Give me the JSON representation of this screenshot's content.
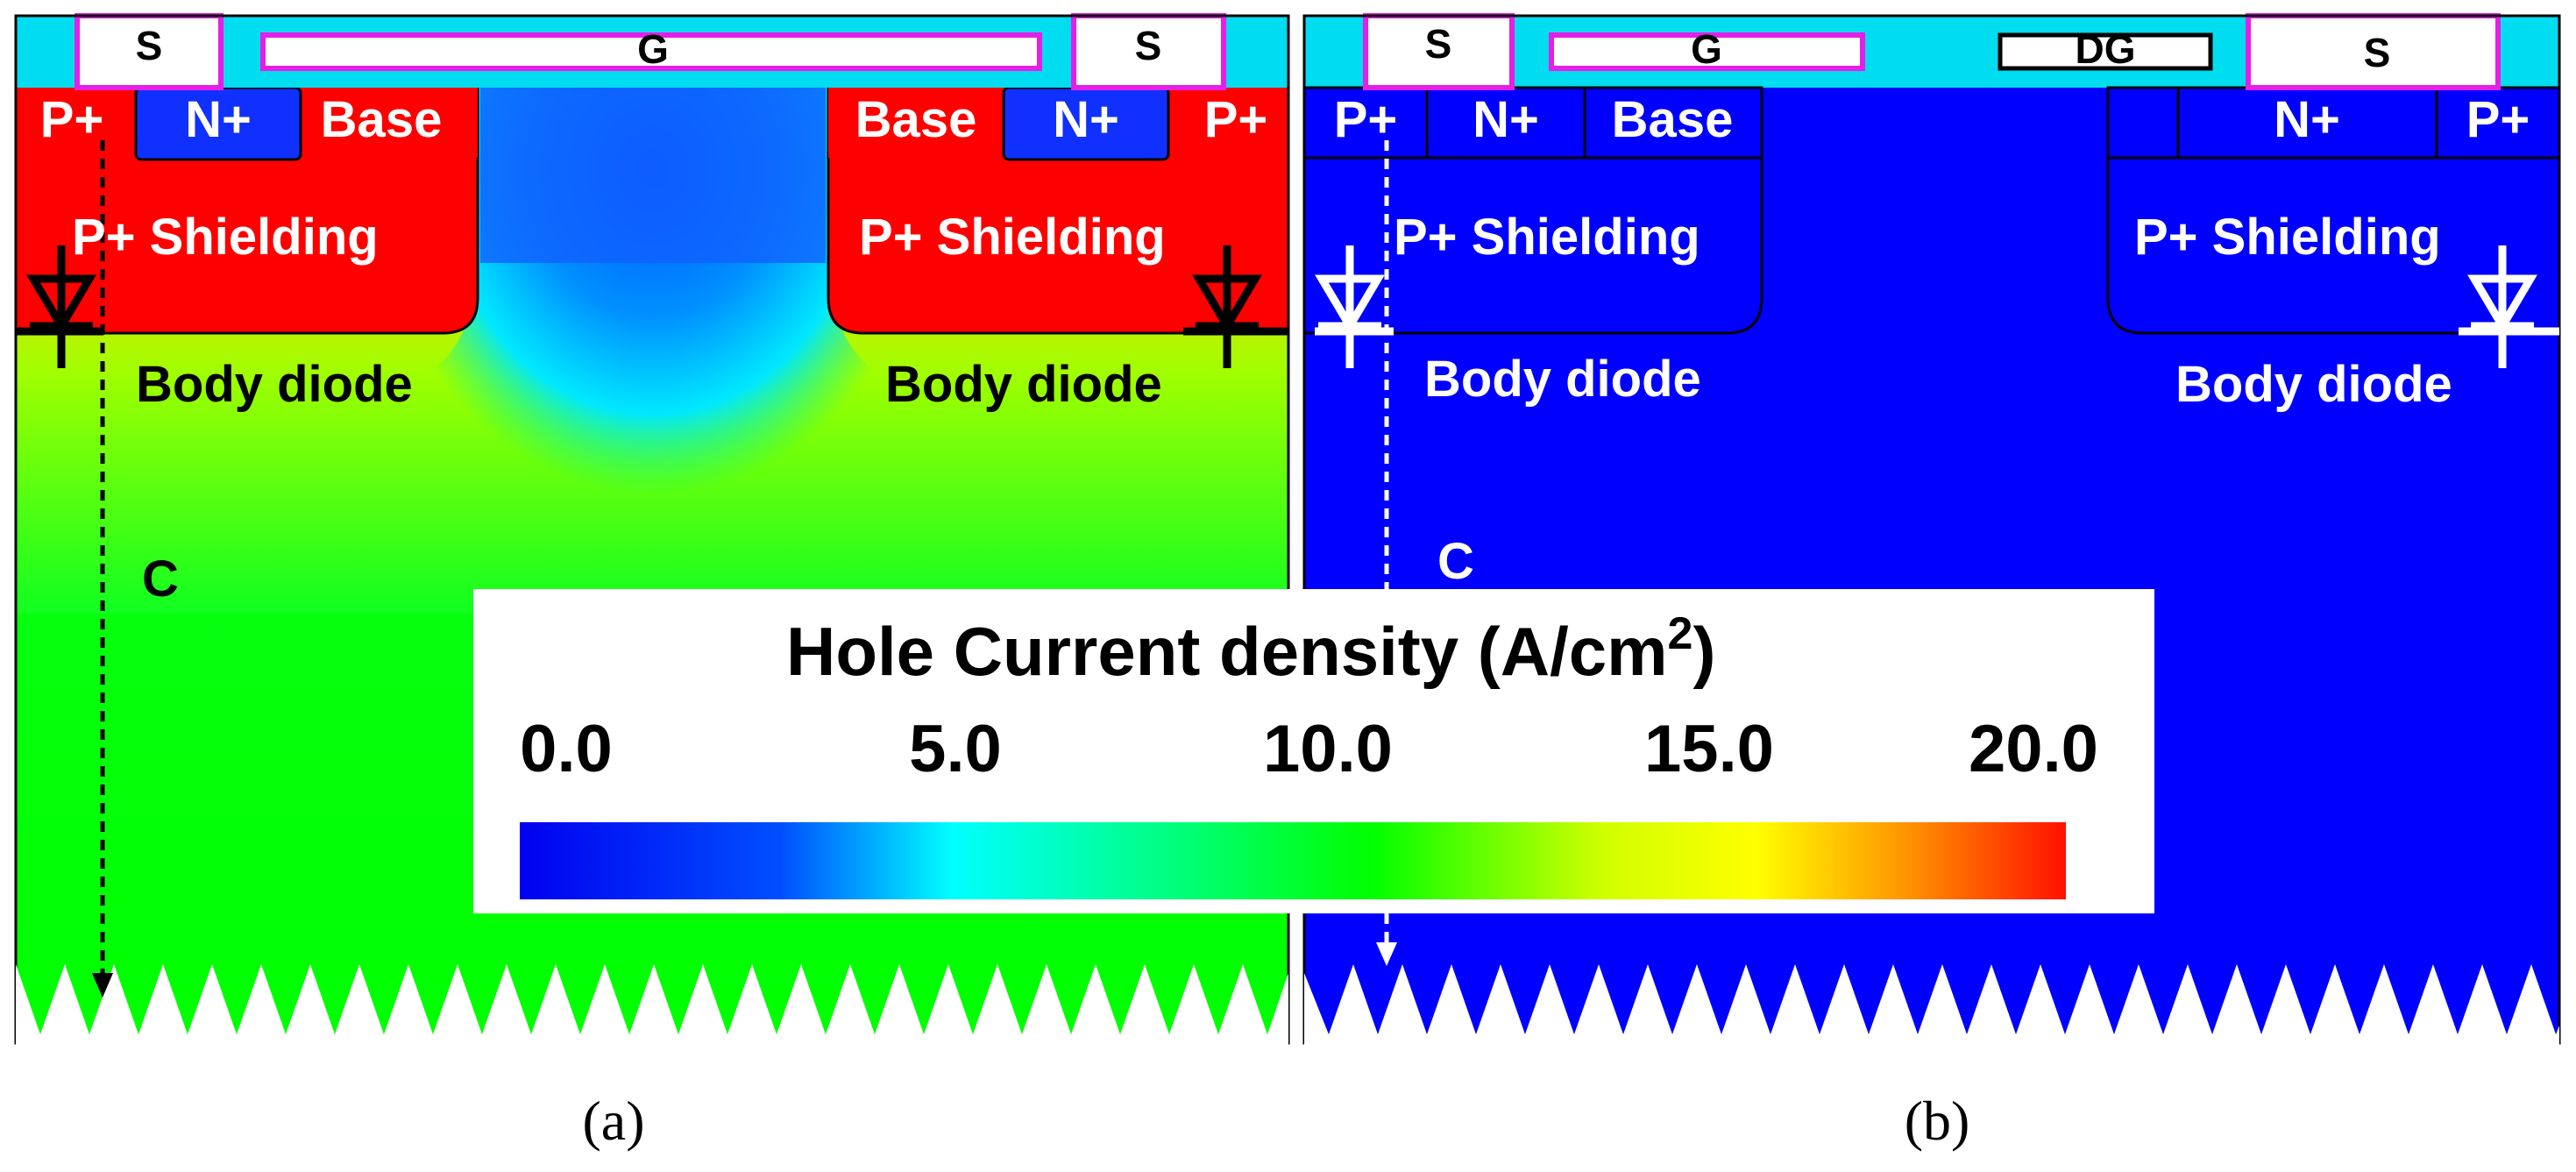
{
  "panel_a": {
    "terminals": {
      "source_left": "S",
      "gate": "G",
      "source_right": "S"
    },
    "regions": {
      "p_plus_left": "P+",
      "n_plus_left": "N+",
      "base_left": "Base",
      "base_right": "Base",
      "n_plus_right": "N+",
      "p_plus_right": "P+",
      "shielding_left": "P+ Shielding",
      "shielding_right": "P+ Shielding",
      "body_diode_left": "Body diode",
      "body_diode_right": "Body diode",
      "channel_label": "C"
    },
    "caption": "(a)"
  },
  "panel_b": {
    "terminals": {
      "source_left": "S",
      "gate": "G",
      "dummy_gate": "DG",
      "source_right": "S"
    },
    "regions": {
      "p_plus_left": "P+",
      "n_plus_left": "N+",
      "base_left": "Base",
      "n_plus_right": "N+",
      "p_plus_right": "P+",
      "shielding_left": "P+ Shielding",
      "shielding_right": "P+ Shielding",
      "body_diode_left": "Body diode",
      "body_diode_right": "Body diode",
      "channel_label": "C"
    },
    "caption": "(b)"
  },
  "colorbar": {
    "title": "Hole Current density (A/cm",
    "title_sup": "2",
    "title_close": ")",
    "ticks": [
      "0.0",
      "5.0",
      "10.0",
      "15.0",
      "20.0"
    ],
    "range": [
      0,
      20
    ],
    "colormap": [
      "#0000ff",
      "#0060ff",
      "#00ffff",
      "#00ff40",
      "#00ff00",
      "#ffff00",
      "#ff8000",
      "#ff0000"
    ]
  },
  "colors": {
    "oxide": "#00dcf0",
    "metal_outline": "#e61ee6",
    "high_density": "#ff0000",
    "mid_density": "#00ff00",
    "low_density": "#0000ff"
  }
}
